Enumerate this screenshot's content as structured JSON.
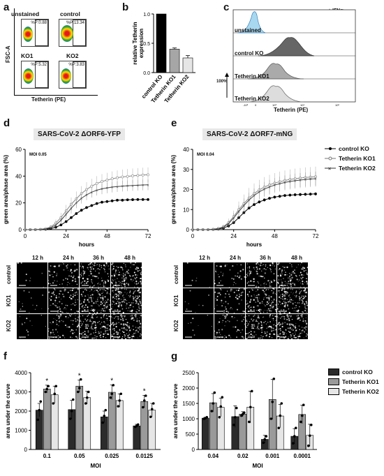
{
  "panels": {
    "a": "a",
    "b": "b",
    "c": "c",
    "d": "d",
    "e": "e",
    "f": "f",
    "g": "g"
  },
  "panel_a": {
    "y_label": "FSC-A",
    "x_label": "Tetherin (PE)",
    "plots": [
      {
        "label": "unstained",
        "pct": "%P:0.88"
      },
      {
        "label": "control",
        "pct": "%P:13.34"
      },
      {
        "label": "KO1",
        "pct": "%P:5.32"
      },
      {
        "label": "KO2",
        "pct": "%P:3.83"
      }
    ]
  },
  "panel_c": {
    "ifn": "+ IFNα",
    "x_label": "Tetherin (PE)",
    "scale": "100%",
    "rows": [
      "unstained",
      "control KO",
      "Tetherin KO1",
      "Tetherin KO2"
    ],
    "ticks": [
      "-10³",
      "0",
      "10³",
      "10⁴",
      "10⁵"
    ]
  },
  "panel_d": {
    "title": "SARS-CoV-2 ΔORF6-YFP",
    "moi": "MOI 0.05",
    "micro_cols": [
      "12 h",
      "24 h",
      "36 h",
      "48 h"
    ],
    "micro_rows": [
      "control",
      "KO1",
      "KO2"
    ]
  },
  "panel_e": {
    "title": "SARS-CoV-2 ΔORF7-mNG",
    "moi": "MOI 0.04",
    "micro_cols": [
      "12 h",
      "24 h",
      "36 h",
      "48 h"
    ],
    "micro_rows": [
      "control",
      "KO1",
      "KO2"
    ]
  },
  "legend_curves": [
    "control KO",
    "Tetherin KO1",
    "Tetherin KO2"
  ],
  "legend_bars": [
    "control KO",
    "Tetherin KO1",
    "Tetherin KO2"
  ],
  "chart_data": [
    {
      "id": "b",
      "type": "bar",
      "categories": [
        "control KO",
        "Tetherin KO1",
        "Tetherin KO2"
      ],
      "values": [
        1.0,
        0.4,
        0.25
      ],
      "errors": [
        0,
        0.02,
        0.04
      ],
      "colors": [
        "#000000",
        "#a6a6a6",
        "#e6e6e6"
      ],
      "ylabel": "relative Tetherin expression",
      "ylim": [
        0,
        1.0
      ],
      "yticks": [
        0.0,
        0.5,
        1.0
      ]
    },
    {
      "id": "d",
      "type": "line",
      "xlabel": "hours",
      "ylabel": "green area/phase area (%)",
      "xlim": [
        0,
        72
      ],
      "ylim": [
        0,
        60
      ],
      "xticks": [
        0,
        24,
        48,
        72
      ],
      "yticks": [
        0,
        20,
        40,
        60
      ],
      "x": [
        0,
        3,
        6,
        9,
        12,
        15,
        18,
        21,
        24,
        27,
        30,
        33,
        36,
        39,
        42,
        45,
        48,
        51,
        54,
        57,
        60,
        63,
        66,
        69,
        72
      ],
      "series": [
        {
          "name": "control KO",
          "values": [
            0,
            0,
            0,
            0.1,
            0.3,
            0.8,
            1.8,
            3.5,
            6,
            9,
            12,
            14.5,
            16.5,
            18,
            19.5,
            20.5,
            21,
            21.5,
            22,
            22,
            22.3,
            22.4,
            22.5,
            22.5,
            22.5
          ],
          "err": [
            0,
            0,
            0,
            0.1,
            0.2,
            0.3,
            0.5,
            0.8,
            1,
            1,
            1,
            1,
            1,
            1,
            1,
            1,
            1,
            1,
            1,
            1,
            1,
            1,
            1,
            1,
            1
          ]
        },
        {
          "name": "Tetherin KO1",
          "values": [
            0,
            0,
            0,
            0.2,
            0.8,
            2,
            5,
            9,
            14,
            19,
            23,
            27,
            30,
            32.5,
            34.5,
            36,
            37,
            38,
            38.8,
            39.4,
            39.8,
            40.2,
            40.5,
            40.8,
            41
          ],
          "err": [
            0,
            0,
            0,
            0.2,
            0.5,
            1.2,
            2.5,
            3.5,
            4.5,
            5,
            5.5,
            5.5,
            5.5,
            5.5,
            5.5,
            5.5,
            5.5,
            5.5,
            5.5,
            5.5,
            5.5,
            5.5,
            5.5,
            5.5,
            5.5
          ]
        },
        {
          "name": "Tetherin KO2",
          "values": [
            0,
            0,
            0,
            0.2,
            0.6,
            1.5,
            3.5,
            7,
            11.5,
            16,
            20,
            23.5,
            26,
            28,
            29.5,
            30.5,
            31.2,
            31.8,
            32.2,
            32.5,
            32.8,
            33,
            33.2,
            33.4,
            33.5
          ],
          "err": [
            0,
            0,
            0,
            0.2,
            0.5,
            1,
            2,
            3,
            3.5,
            4,
            4,
            4,
            4,
            4,
            4,
            4,
            4,
            4,
            4,
            4,
            4,
            4,
            4,
            4,
            4
          ]
        }
      ]
    },
    {
      "id": "e",
      "type": "line",
      "xlabel": "hours",
      "ylabel": "green area/phase area (%)",
      "xlim": [
        0,
        72
      ],
      "ylim": [
        0,
        40
      ],
      "xticks": [
        0,
        24,
        48,
        72
      ],
      "yticks": [
        0,
        10,
        20,
        30,
        40
      ],
      "x": [
        0,
        3,
        6,
        9,
        12,
        15,
        18,
        21,
        24,
        27,
        30,
        33,
        36,
        39,
        42,
        45,
        48,
        51,
        54,
        57,
        60,
        63,
        66,
        69,
        72
      ],
      "series": [
        {
          "name": "control KO",
          "values": [
            0,
            0,
            0,
            0,
            0.1,
            0.3,
            0.8,
            1.8,
            3.5,
            6,
            8.5,
            10.8,
            12.5,
            13.8,
            14.8,
            15.6,
            16.2,
            16.6,
            17,
            17.2,
            17.4,
            17.5,
            17.6,
            17.7,
            17.8
          ],
          "err": [
            0,
            0,
            0,
            0,
            0.1,
            0.2,
            0.4,
            0.6,
            0.8,
            0.8,
            0.8,
            0.8,
            0.8,
            0.8,
            0.8,
            0.8,
            0.8,
            0.8,
            0.8,
            0.8,
            0.8,
            0.8,
            0.8,
            0.8,
            0.8
          ]
        },
        {
          "name": "Tetherin KO1",
          "values": [
            0,
            0,
            0,
            0,
            0.2,
            0.6,
            1.5,
            3.5,
            6.5,
            10,
            13,
            15.8,
            18,
            19.8,
            21.2,
            22.3,
            23.2,
            23.9,
            24.5,
            25,
            25.4,
            25.7,
            26,
            26.2,
            26.4
          ],
          "err": [
            0,
            0,
            0,
            0,
            0.1,
            0.4,
            1,
            2,
            3,
            4,
            4.5,
            5,
            5,
            5,
            5,
            5,
            5,
            5,
            5,
            5,
            5,
            5,
            5,
            5,
            5
          ]
        },
        {
          "name": "Tetherin KO2",
          "values": [
            0,
            0,
            0,
            0,
            0.2,
            0.5,
            1.2,
            3,
            5.8,
            9,
            12,
            14.8,
            17,
            18.8,
            20.2,
            21.3,
            22.2,
            22.9,
            23.5,
            24,
            24.4,
            24.7,
            25,
            25.2,
            25.4
          ],
          "err": [
            0,
            0,
            0,
            0,
            0.1,
            0.3,
            0.8,
            1.5,
            2.5,
            3,
            3.5,
            3.5,
            3.5,
            3.5,
            3.5,
            3.5,
            3.5,
            3.5,
            3.5,
            3.5,
            3.5,
            3.5,
            3.5,
            3.5,
            3.5
          ]
        }
      ]
    },
    {
      "id": "f",
      "type": "bar",
      "xlabel": "MOI",
      "ylabel": "area under the curve",
      "ylim": [
        0,
        4000
      ],
      "yticks": [
        0,
        1000,
        2000,
        3000,
        4000
      ],
      "categories": [
        "0.1",
        "0.05",
        "0.025",
        "0.0125"
      ],
      "stars": [
        "*",
        "*",
        "*",
        "*"
      ],
      "series": [
        {
          "name": "control KO",
          "values": [
            2050,
            2080,
            1700,
            1230
          ],
          "err": [
            350,
            480,
            300,
            80
          ],
          "points": [
            [
              1550,
              2050,
              2500
            ],
            [
              1600,
              2000,
              2600
            ],
            [
              1400,
              1750,
              2050
            ],
            [
              1180,
              1230,
              1300
            ]
          ]
        },
        {
          "name": "Tetherin KO1",
          "values": [
            3150,
            3300,
            2980,
            2500
          ],
          "err": [
            200,
            320,
            380,
            320
          ],
          "points": [
            [
              3000,
              3150,
              3300
            ],
            [
              3000,
              3200,
              3650
            ],
            [
              2700,
              2900,
              3350
            ],
            [
              2200,
              2550,
              2800
            ]
          ]
        },
        {
          "name": "Tetherin KO2",
          "values": [
            2850,
            2700,
            2550,
            2050
          ],
          "err": [
            450,
            330,
            350,
            350
          ],
          "points": [
            [
              2400,
              2900,
              3300
            ],
            [
              2400,
              2700,
              3000
            ],
            [
              2250,
              2550,
              2900
            ],
            [
              1700,
              2100,
              2400
            ]
          ]
        }
      ]
    },
    {
      "id": "g",
      "type": "bar",
      "xlabel": "MOI",
      "ylabel": "area under the curve",
      "ylim": [
        0,
        2500
      ],
      "yticks": [
        0,
        500,
        1000,
        1500,
        2000,
        2500
      ],
      "categories": [
        "0.04",
        "0.02",
        "0.001",
        "0.0001"
      ],
      "series": [
        {
          "name": "control KO",
          "values": [
            1020,
            1070,
            330,
            430
          ],
          "err": [
            30,
            350,
            130,
            250
          ],
          "points": [
            [
              1000,
              1020,
              1050
            ],
            [
              800,
              1050,
              1350
            ],
            [
              220,
              330,
              430
            ],
            [
              200,
              430,
              700
            ]
          ]
        },
        {
          "name": "Tetherin KO1",
          "values": [
            1520,
            1150,
            1630,
            1140
          ],
          "err": [
            300,
            80,
            650,
            300
          ],
          "points": [
            [
              1250,
              1500,
              1850
            ],
            [
              1100,
              1150,
              1200
            ],
            [
              1000,
              1550,
              2300
            ],
            [
              900,
              1100,
              1450
            ]
          ]
        },
        {
          "name": "Tetherin KO2",
          "values": [
            1370,
            1380,
            1090,
            460
          ],
          "err": [
            300,
            520,
            380,
            360
          ],
          "points": [
            [
              1050,
              1400,
              1700
            ],
            [
              900,
              1380,
              1900
            ],
            [
              700,
              1100,
              1500
            ],
            [
              120,
              450,
              800
            ]
          ]
        }
      ]
    }
  ]
}
